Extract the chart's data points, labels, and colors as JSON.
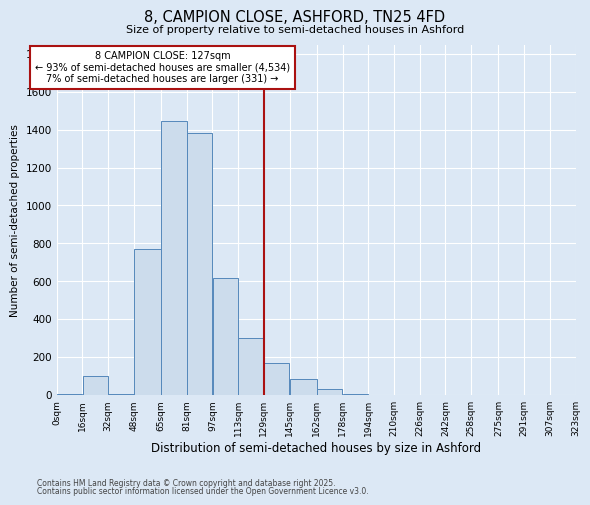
{
  "title": "8, CAMPION CLOSE, ASHFORD, TN25 4FD",
  "subtitle": "Size of property relative to semi-detached houses in Ashford",
  "xlabel": "Distribution of semi-detached houses by size in Ashford",
  "ylabel": "Number of semi-detached properties",
  "bin_edges": [
    0,
    16,
    32,
    48,
    65,
    81,
    97,
    113,
    129,
    145,
    162,
    178,
    194,
    210,
    226,
    242,
    258,
    275,
    291,
    307,
    323
  ],
  "bin_labels": [
    "0sqm",
    "16sqm",
    "32sqm",
    "48sqm",
    "65sqm",
    "81sqm",
    "97sqm",
    "113sqm",
    "129sqm",
    "145sqm",
    "162sqm",
    "178sqm",
    "194sqm",
    "210sqm",
    "226sqm",
    "242sqm",
    "258sqm",
    "275sqm",
    "291sqm",
    "307sqm",
    "323sqm"
  ],
  "bar_heights": [
    5,
    100,
    5,
    770,
    1445,
    1385,
    615,
    300,
    170,
    85,
    30,
    5,
    0,
    0,
    0,
    0,
    0,
    0,
    0,
    0
  ],
  "bar_color": "#ccdcec",
  "bar_edge_color": "#5588bb",
  "vline_x": 129,
  "vline_color": "#aa1111",
  "annotation_title": "8 CAMPION CLOSE: 127sqm",
  "annotation_line1": "← 93% of semi-detached houses are smaller (4,534)",
  "annotation_line2": "7% of semi-detached houses are larger (331) →",
  "annotation_box_color": "#ffffff",
  "annotation_box_edge": "#aa1111",
  "ylim": [
    0,
    1850
  ],
  "yticks": [
    0,
    200,
    400,
    600,
    800,
    1000,
    1200,
    1400,
    1600,
    1800
  ],
  "background_color": "#dce8f5",
  "grid_color": "#ffffff",
  "footer1": "Contains HM Land Registry data © Crown copyright and database right 2025.",
  "footer2": "Contains public sector information licensed under the Open Government Licence v3.0."
}
